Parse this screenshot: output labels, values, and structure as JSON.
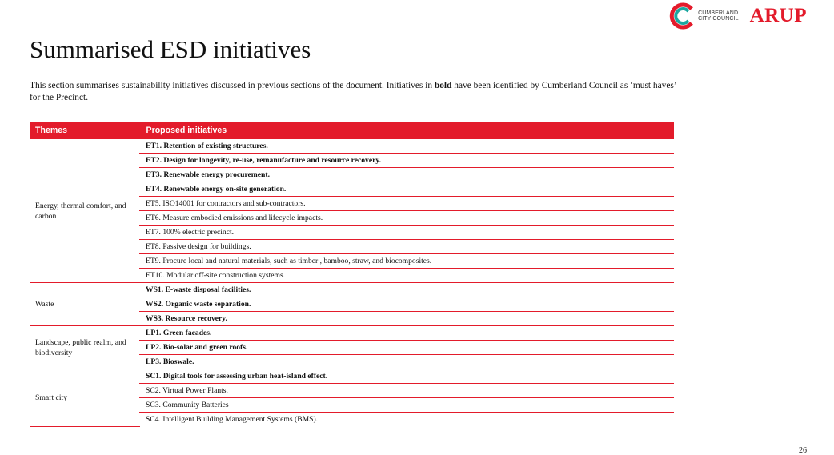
{
  "header": {
    "council_logo_line1": "CUMBERLAND",
    "council_logo_line2": "CITY COUNCIL",
    "arup_logo": "ARUP",
    "colors": {
      "arup_red": "#e31b2b",
      "council_teal": "#1aa7a0",
      "council_red": "#e31b2b"
    }
  },
  "title": "Summarised ESD initiatives",
  "intro": {
    "part1": "This section summarises sustainability initiatives discussed in previous sections of the document. Initiatives in ",
    "bold": "bold",
    "part2": " have been identified by Cumberland Council as ‘must haves’ for the Precinct."
  },
  "table": {
    "headers": [
      "Themes",
      "Proposed initiatives"
    ],
    "header_color": "#e31b2b",
    "groups": [
      {
        "theme": "Energy, thermal comfort, and carbon",
        "items": [
          {
            "text": "ET1. Retention of existing structures.",
            "bold": true
          },
          {
            "text": "ET2. Design for longevity, re-use, remanufacture and resource recovery.",
            "bold": true
          },
          {
            "text": "ET3. Renewable energy procurement.",
            "bold": true
          },
          {
            "text": "ET4. Renewable energy on-site generation.",
            "bold": true
          },
          {
            "text": "ET5. ISO14001 for contractors and sub-contractors.",
            "bold": false
          },
          {
            "text": "ET6. Measure embodied emissions and lifecycle impacts.",
            "bold": false
          },
          {
            "text": "ET7. 100% electric precinct.",
            "bold": false
          },
          {
            "text": "ET8. Passive design for buildings.",
            "bold": false
          },
          {
            "text": "ET9. Procure local and natural materials, such as timber , bamboo, straw, and biocomposites.",
            "bold": false
          },
          {
            "text": "ET10. Modular off-site construction systems.",
            "bold": false
          }
        ]
      },
      {
        "theme": "Waste",
        "items": [
          {
            "text": "WS1. E-waste disposal facilities.",
            "bold": true
          },
          {
            "text": "WS2. Organic waste separation.",
            "bold": true
          },
          {
            "text": "WS3. Resource recovery.",
            "bold": true
          }
        ]
      },
      {
        "theme": "Landscape, public realm, and biodiversity",
        "items": [
          {
            "text": "LP1. Green facades.",
            "bold": true
          },
          {
            "text": "LP2. Bio-solar and green roofs.",
            "bold": true
          },
          {
            "text": "LP3. Bioswale.",
            "bold": true
          }
        ]
      },
      {
        "theme": "Smart city",
        "items": [
          {
            "text": "SC1. Digital tools for assessing urban heat-island effect.",
            "bold": true
          },
          {
            "text": "SC2. Virtual Power Plants.",
            "bold": false
          },
          {
            "text": "SC3. Community Batteries",
            "bold": false
          },
          {
            "text": "SC4. Intelligent Building Management Systems (BMS).",
            "bold": false
          }
        ]
      }
    ]
  },
  "page_number": "26"
}
